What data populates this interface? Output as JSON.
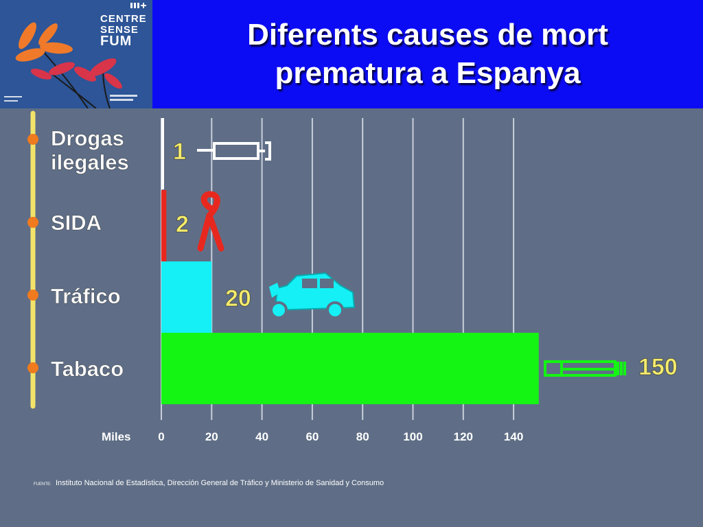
{
  "header": {
    "title_line1": "Diferents causes de mort",
    "title_line2": "prematura a Espanya"
  },
  "logo": {
    "line1": "CENTRE",
    "line2": "SENSE",
    "line3": "FUM"
  },
  "chart_data": {
    "type": "bar",
    "orientation": "horizontal",
    "categories": [
      "Drogas ilegales",
      "SIDA",
      "Tráfico",
      "Tabaco"
    ],
    "category_lines": [
      [
        "Drogas",
        "ilegales"
      ],
      [
        "SIDA"
      ],
      [
        "Tráfico"
      ],
      [
        "Tabaco"
      ]
    ],
    "values": [
      1,
      2,
      20,
      150
    ],
    "value_labels": [
      "1",
      "2",
      "20",
      "150"
    ],
    "bar_colors": [
      "#ffffff",
      "#e8281f",
      "#14f0f5",
      "#14f514"
    ],
    "icons": [
      "syringe-icon",
      "aids-ribbon-icon",
      "crashed-car-icon",
      "cigarette-icon"
    ],
    "xunit_label": "Miles",
    "xlim": [
      0,
      150
    ],
    "xticks": [
      0,
      20,
      40,
      60,
      80,
      100,
      120,
      140
    ],
    "grid": true,
    "source": "Instituto Nacional de Estadística, Dirección General de Tráfico y Ministerio de Sanidad y Consumo",
    "source_prefix": "FUENTE:",
    "colors": {
      "background": "#5f6e86",
      "label_text": "#ffffff",
      "value_text": "#f5ec6e",
      "timeline": "#f2e46a",
      "bullet": "#f07a1e",
      "gridline": "#c9cfdb"
    }
  }
}
